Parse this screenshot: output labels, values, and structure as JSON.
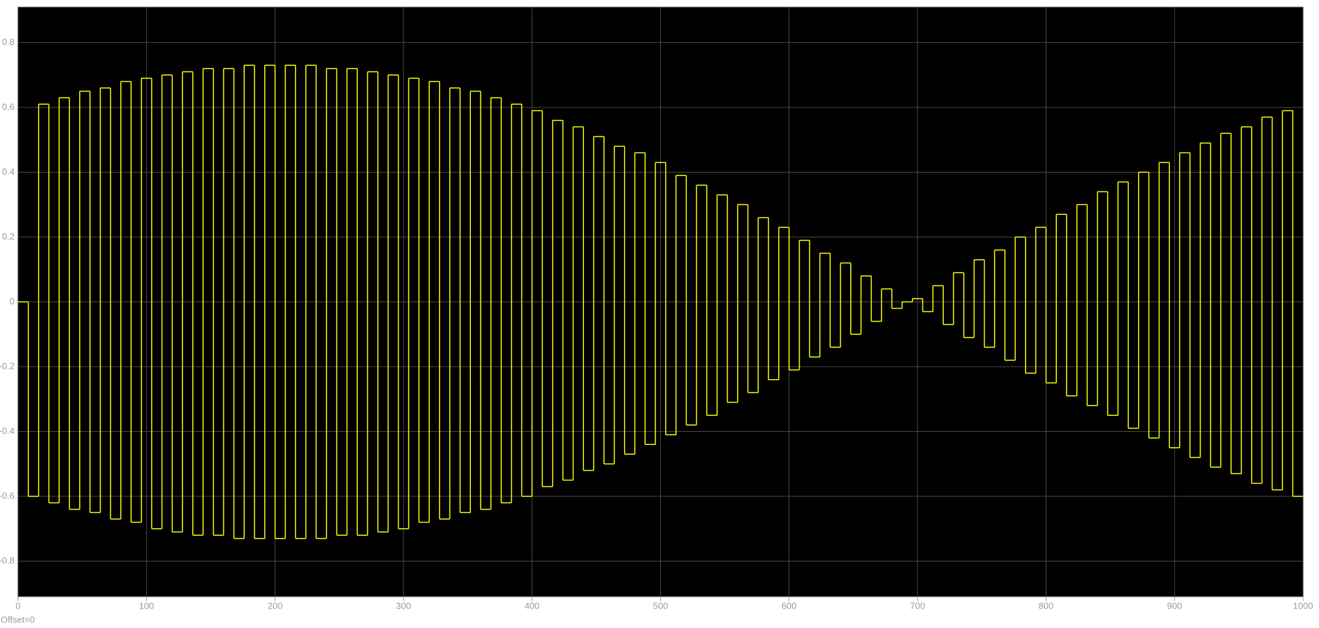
{
  "chart_data": {
    "type": "line",
    "step": "post",
    "annotation": "Offset=0",
    "x": [
      0,
      8,
      16,
      24,
      32,
      40,
      48,
      56,
      64,
      72,
      80,
      88,
      96,
      104,
      112,
      120,
      128,
      136,
      144,
      152,
      160,
      168,
      176,
      184,
      192,
      200,
      208,
      216,
      224,
      232,
      240,
      248,
      256,
      264,
      272,
      280,
      288,
      296,
      304,
      312,
      320,
      328,
      336,
      344,
      352,
      360,
      368,
      376,
      384,
      392,
      400,
      408,
      416,
      424,
      432,
      440,
      448,
      456,
      464,
      472,
      480,
      488,
      496,
      504,
      512,
      520,
      528,
      536,
      544,
      552,
      560,
      568,
      576,
      584,
      592,
      600,
      608,
      616,
      624,
      632,
      640,
      648,
      656,
      664,
      672,
      680,
      688,
      696,
      704,
      712,
      720,
      728,
      736,
      744,
      752,
      760,
      768,
      776,
      784,
      792,
      800,
      808,
      816,
      824,
      832,
      840,
      848,
      856,
      864,
      872,
      880,
      888,
      896,
      904,
      912,
      920,
      928,
      936,
      944,
      952,
      960,
      968,
      976,
      984,
      992
    ],
    "series": [
      {
        "color": "#ffff00",
        "values": [
          0,
          -0.6,
          0.61,
          -0.62,
          0.63,
          -0.64,
          0.65,
          -0.65,
          0.66,
          -0.67,
          0.68,
          -0.68,
          0.69,
          -0.7,
          0.7,
          -0.71,
          0.71,
          -0.72,
          0.72,
          -0.72,
          0.72,
          -0.73,
          0.73,
          -0.73,
          0.73,
          -0.73,
          0.73,
          -0.73,
          0.73,
          -0.73,
          0.72,
          -0.72,
          0.72,
          -0.72,
          0.71,
          -0.71,
          0.7,
          -0.7,
          0.69,
          -0.68,
          0.68,
          -0.67,
          0.66,
          -0.65,
          0.65,
          -0.64,
          0.63,
          -0.62,
          0.61,
          -0.6,
          0.59,
          -0.57,
          0.56,
          -0.55,
          0.54,
          -0.52,
          0.51,
          -0.5,
          0.48,
          -0.47,
          0.46,
          -0.44,
          0.43,
          -0.41,
          0.39,
          -0.38,
          0.36,
          -0.35,
          0.33,
          -0.31,
          0.3,
          -0.28,
          0.26,
          -0.24,
          0.23,
          -0.21,
          0.19,
          -0.17,
          0.15,
          -0.14,
          0.12,
          -0.1,
          0.08,
          -0.06,
          0.04,
          -0.02,
          0,
          0.01,
          -0.03,
          0.05,
          -0.07,
          0.09,
          -0.11,
          0.13,
          -0.14,
          0.16,
          -0.18,
          0.2,
          -0.22,
          0.23,
          -0.25,
          0.27,
          -0.29,
          0.3,
          -0.32,
          0.34,
          -0.35,
          0.37,
          -0.39,
          0.4,
          -0.42,
          0.43,
          -0.45,
          0.46,
          -0.48,
          0.49,
          -0.51,
          0.52,
          -0.53,
          0.54,
          -0.56,
          0.57,
          -0.58,
          0.59,
          -0.6
        ]
      }
    ],
    "xlim": [
      0,
      1000
    ],
    "xticks": [
      0,
      100,
      200,
      300,
      400,
      500,
      600,
      700,
      800,
      900,
      1000
    ],
    "ylim": [
      -0.91,
      0.91
    ],
    "yticks": [
      -0.8,
      -0.6,
      -0.4,
      -0.2,
      0,
      0.2,
      0.4,
      0.6,
      0.8
    ],
    "grid": true
  }
}
